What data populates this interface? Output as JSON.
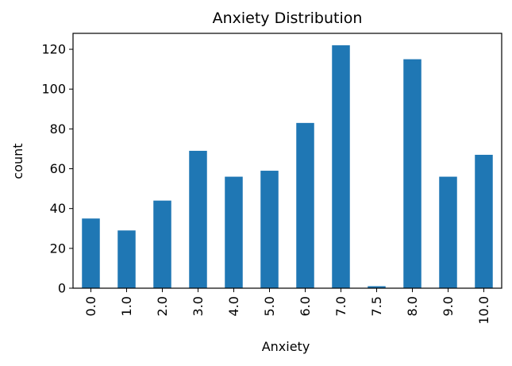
{
  "chart_data": {
    "type": "bar",
    "title": "Anxiety Distribution",
    "xlabel": "Anxiety",
    "ylabel": "count",
    "categories": [
      "0.0",
      "1.0",
      "2.0",
      "3.0",
      "4.0",
      "5.0",
      "6.0",
      "7.0",
      "7.5",
      "8.0",
      "9.0",
      "10.0"
    ],
    "values": [
      35,
      29,
      44,
      69,
      56,
      59,
      83,
      122,
      1,
      115,
      56,
      67
    ],
    "ylim": [
      0,
      128
    ],
    "yticks": [
      0,
      20,
      40,
      60,
      80,
      100,
      120
    ],
    "grid": false,
    "legend": "none",
    "bar_color": "#1f77b4"
  }
}
